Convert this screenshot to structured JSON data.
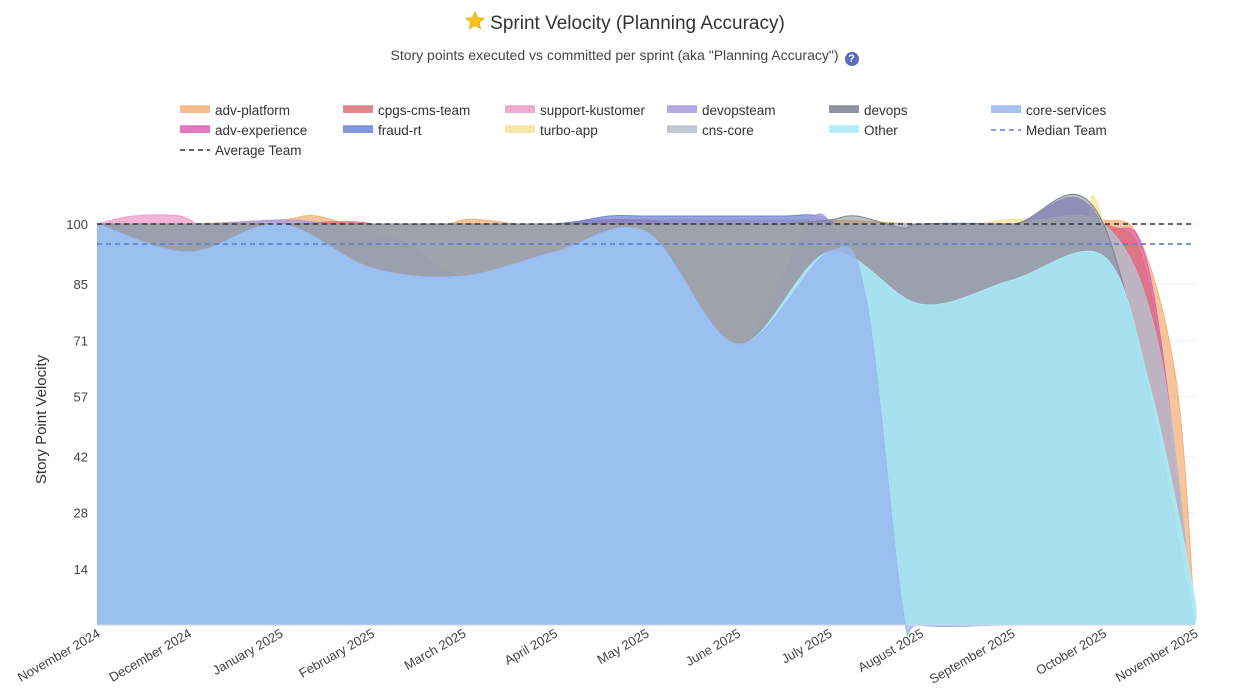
{
  "header": {
    "title": "Sprint Velocity (Planning Accuracy)",
    "title_icon": "star-icon",
    "subtitle": "Story points executed vs committed per sprint (aka \"Planning Accuracy\")",
    "help_icon_glyph": "?"
  },
  "colors": {
    "adv-platform": "#f3b27a",
    "cpgs-cms-team": "#d9737a",
    "support-kustomer": "#ee9cc8",
    "devopsteam": "#a99be0",
    "devops": "#7d8391",
    "core-services": "#98b8ef",
    "adv-experience": "#e160b9",
    "fraud-rt": "#6f85d6",
    "turbo-app": "#f6e39a",
    "cns-core": "#b9bfcb",
    "Other": "#a9ecfa",
    "Median Team": "#5b7fd4",
    "Average Team": "#333333"
  },
  "chart_data": {
    "type": "area",
    "title": "Sprint Velocity (Planning Accuracy)",
    "ylabel": "Story Point Velocity",
    "xlabel": "",
    "ylim": [
      0,
      100
    ],
    "yticks": [
      14,
      28,
      42,
      57,
      71,
      85,
      100
    ],
    "categories": [
      "November 2024",
      "December 2024",
      "January 2025",
      "February 2025",
      "March 2025",
      "April 2025",
      "May 2025",
      "June 2025",
      "July 2025",
      "August 2025",
      "September 2025",
      "October 2025",
      "November 2025"
    ],
    "legend": [
      {
        "name": "adv-platform",
        "kind": "area"
      },
      {
        "name": "cpgs-cms-team",
        "kind": "area"
      },
      {
        "name": "support-kustomer",
        "kind": "area"
      },
      {
        "name": "devopsteam",
        "kind": "area"
      },
      {
        "name": "devops",
        "kind": "area"
      },
      {
        "name": "core-services",
        "kind": "area"
      },
      {
        "name": "adv-experience",
        "kind": "area"
      },
      {
        "name": "fraud-rt",
        "kind": "area"
      },
      {
        "name": "turbo-app",
        "kind": "area"
      },
      {
        "name": "cns-core",
        "kind": "area"
      },
      {
        "name": "Other",
        "kind": "area"
      },
      {
        "name": "Median Team",
        "kind": "dash"
      },
      {
        "name": "Average Team",
        "kind": "dash"
      }
    ],
    "series": [
      {
        "name": "adv-platform",
        "opacity": 0.75,
        "x": [
          0,
          0.8,
          1,
          2,
          2.4,
          3,
          3.5,
          4,
          4.6,
          5,
          6,
          7,
          8,
          9,
          10,
          10.5,
          11,
          11.4,
          11.8,
          12
        ],
        "values": [
          100,
          100,
          100,
          101,
          102,
          98,
          96,
          101,
          100,
          100,
          101,
          101,
          101,
          100,
          99,
          101,
          101,
          96,
          60,
          0
        ]
      },
      {
        "name": "adv-experience",
        "opacity": 0.75,
        "x": [
          0,
          1,
          2,
          3,
          4,
          5,
          6,
          7,
          8,
          9,
          10,
          11,
          11.5,
          12
        ],
        "values": [
          100,
          100,
          100,
          100,
          100,
          100,
          100,
          100,
          100,
          100,
          100,
          99,
          88,
          0
        ]
      },
      {
        "name": "cpgs-cms-team",
        "opacity": 0.75,
        "x": [
          0,
          1,
          2,
          3,
          3.5,
          4,
          5,
          6,
          7,
          7.5,
          8,
          9,
          10,
          11,
          11.5,
          12
        ],
        "values": [
          100,
          100,
          100,
          100,
          92,
          96,
          100,
          101,
          97,
          100,
          100,
          100,
          100,
          100,
          85,
          0
        ]
      },
      {
        "name": "support-kustomer",
        "opacity": 0.75,
        "x": [
          0,
          0.4,
          0.9,
          1.2,
          1.6,
          2,
          3,
          4,
          5,
          6,
          7,
          8,
          9,
          10,
          11,
          12
        ],
        "values": [
          100,
          102,
          102,
          99,
          100,
          100,
          100,
          100,
          100,
          100,
          100,
          100,
          100,
          100,
          99,
          0
        ]
      },
      {
        "name": "fraud-rt",
        "opacity": 0.75,
        "x": [
          0,
          1,
          2,
          3,
          4,
          5,
          5.6,
          6,
          7,
          7.5,
          7.9,
          8.3,
          9,
          10,
          11,
          12
        ],
        "values": [
          100,
          100,
          100,
          100,
          100,
          100,
          102,
          102,
          102,
          102,
          102,
          98,
          100,
          100,
          99,
          0
        ]
      },
      {
        "name": "turbo-app",
        "opacity": 0.75,
        "x": [
          0,
          1,
          2,
          3,
          4,
          5,
          6,
          7,
          8,
          9,
          9.4,
          9.9,
          10.4,
          10.8,
          11,
          12
        ],
        "values": [
          100,
          100,
          100,
          100,
          100,
          100,
          100,
          100,
          100,
          100,
          99,
          101,
          101,
          99,
          100,
          0
        ]
      },
      {
        "name": "devopsteam",
        "opacity": 0.75,
        "x": [
          0,
          0.9,
          1.3,
          2,
          2.5,
          3.3,
          4,
          5,
          6,
          7,
          7.8,
          8.1,
          8.5,
          9,
          10,
          11,
          12
        ],
        "values": [
          100,
          99,
          100,
          101,
          100,
          96,
          87,
          93,
          99,
          70,
          101,
          98,
          100,
          100,
          100,
          99,
          0
        ]
      },
      {
        "name": "cns-core",
        "opacity": 0.85,
        "x": [
          0,
          1,
          2,
          3,
          4,
          5,
          6,
          7,
          7.5,
          8,
          8.3,
          8.8,
          9,
          10,
          11,
          11.6,
          12
        ],
        "values": [
          100,
          100,
          100,
          100,
          100,
          100,
          100,
          100,
          100,
          100,
          100,
          100,
          100,
          100,
          100,
          70,
          0
        ]
      },
      {
        "name": "devops",
        "opacity": 0.5,
        "x": [
          0,
          1,
          2,
          3,
          4,
          5,
          6,
          7,
          7.5,
          8,
          8.3,
          8.8,
          9,
          10,
          11,
          12
        ],
        "values": [
          100,
          100,
          100,
          100,
          100,
          100,
          100,
          100,
          100,
          101,
          102,
          99,
          100,
          100,
          100,
          0
        ]
      },
      {
        "name": "Other",
        "opacity": 0.85,
        "x": [
          0,
          1,
          2,
          3,
          4,
          5,
          6,
          7,
          8,
          9,
          10,
          11,
          11.5,
          11.97,
          12
        ],
        "values": [
          100,
          93,
          100,
          89,
          87,
          93,
          98,
          70,
          93,
          80,
          86,
          92,
          60,
          10,
          0
        ]
      },
      {
        "name": "core-services",
        "opacity": 0.8,
        "x": [
          0,
          1,
          2,
          3,
          4,
          5,
          6,
          7,
          8,
          8.4,
          8.8,
          9,
          10,
          11,
          12
        ],
        "values": [
          100,
          93,
          100,
          89,
          87,
          93,
          98,
          70,
          93,
          82,
          5,
          0,
          0,
          0,
          0
        ]
      }
    ],
    "reference_lines": [
      {
        "name": "Average Team",
        "value": 100,
        "style": "dash"
      },
      {
        "name": "Median Team",
        "value": 95,
        "style": "dash"
      }
    ]
  }
}
